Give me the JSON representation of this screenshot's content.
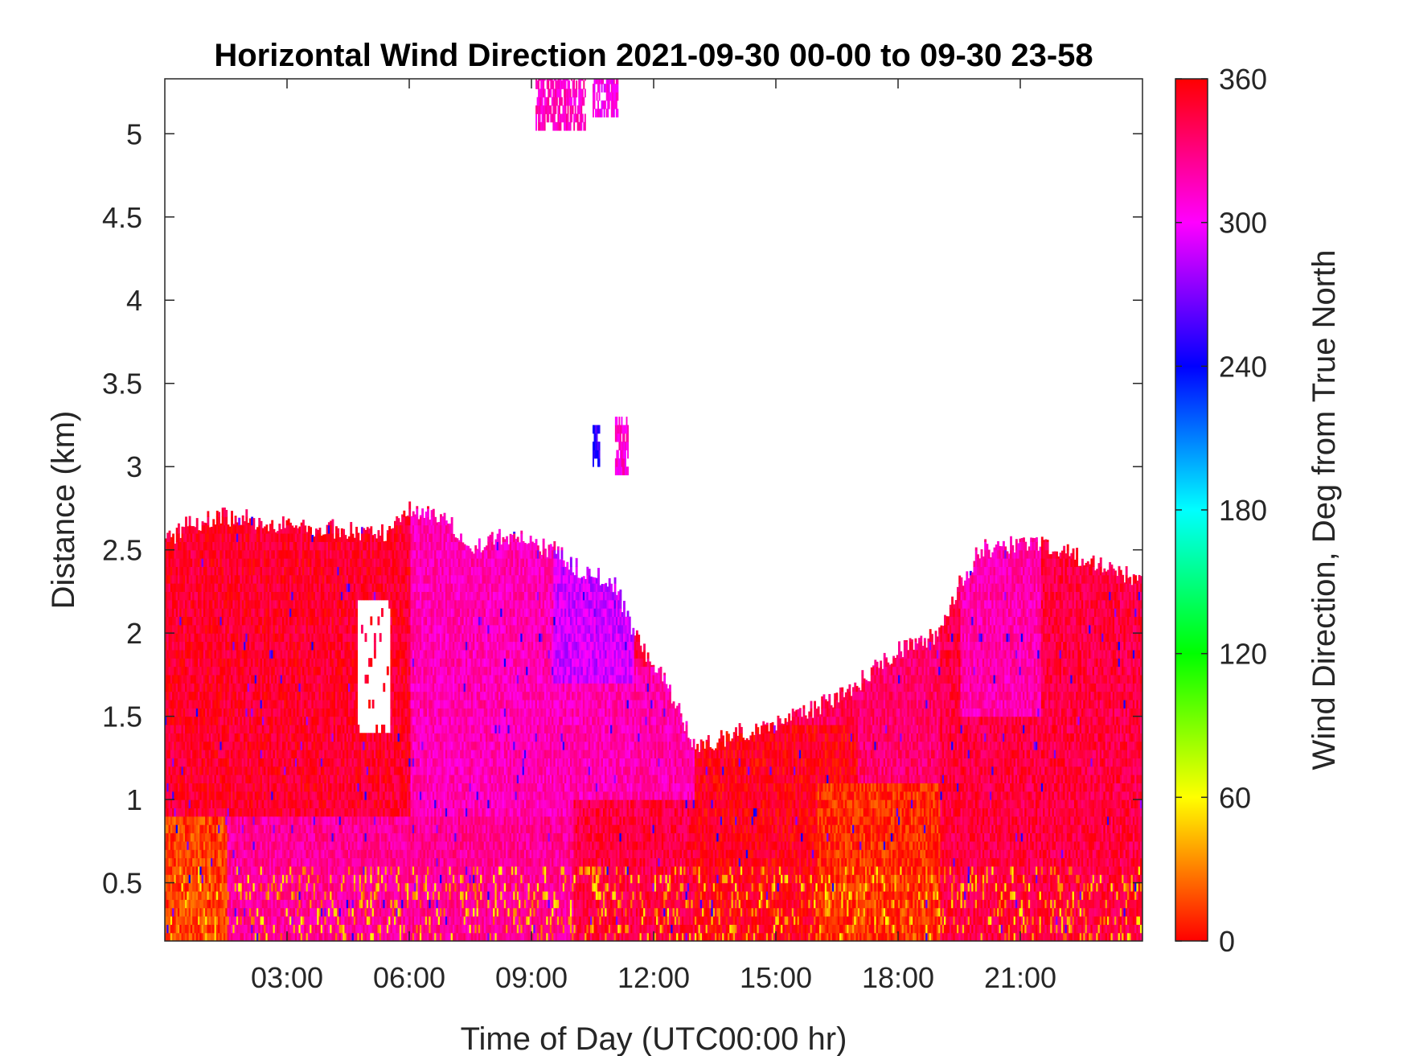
{
  "chart_data": {
    "type": "heatmap",
    "title": "Horizontal Wind Direction 2021-09-30 00-00 to 09-30 23-58",
    "xlabel": "Time of Day (UTC00:00 hr)",
    "ylabel": "Distance (km)",
    "colorbar_label": "Wind Direction, Deg from True North",
    "x_range_hours": [
      0,
      24
    ],
    "y_range_km": [
      0.15,
      5.33
    ],
    "color_range_deg": [
      0,
      360
    ],
    "x_ticks": [
      {
        "value": 3,
        "label": "03:00"
      },
      {
        "value": 6,
        "label": "06:00"
      },
      {
        "value": 9,
        "label": "09:00"
      },
      {
        "value": 12,
        "label": "12:00"
      },
      {
        "value": 15,
        "label": "15:00"
      },
      {
        "value": 18,
        "label": "18:00"
      },
      {
        "value": 21,
        "label": "21:00"
      }
    ],
    "y_ticks": [
      {
        "value": 0.5,
        "label": "0.5"
      },
      {
        "value": 1,
        "label": "1"
      },
      {
        "value": 1.5,
        "label": "1.5"
      },
      {
        "value": 2,
        "label": "2"
      },
      {
        "value": 2.5,
        "label": "2.5"
      },
      {
        "value": 3,
        "label": "3"
      },
      {
        "value": 3.5,
        "label": "3.5"
      },
      {
        "value": 4,
        "label": "4"
      },
      {
        "value": 4.5,
        "label": "4.5"
      },
      {
        "value": 5,
        "label": "5"
      }
    ],
    "colorbar_ticks": [
      {
        "value": 0,
        "label": "0"
      },
      {
        "value": 60,
        "label": "60"
      },
      {
        "value": 120,
        "label": "120"
      },
      {
        "value": 180,
        "label": "180"
      },
      {
        "value": 240,
        "label": "240"
      },
      {
        "value": 300,
        "label": "300"
      },
      {
        "value": 360,
        "label": "360"
      }
    ],
    "colormap": [
      "#ff0000",
      "#ffff00",
      "#00ff00",
      "#00ffff",
      "#0000ff",
      "#ff00ff",
      "#ff0000"
    ],
    "data_top_height_km": [
      {
        "hour": 0,
        "km": 2.55
      },
      {
        "hour": 0.5,
        "km": 2.65
      },
      {
        "hour": 1.5,
        "km": 2.7
      },
      {
        "hour": 3,
        "km": 2.65
      },
      {
        "hour": 5.5,
        "km": 2.6
      },
      {
        "hour": 6,
        "km": 2.75
      },
      {
        "hour": 7,
        "km": 2.65
      },
      {
        "hour": 7.5,
        "km": 2.5
      },
      {
        "hour": 8.5,
        "km": 2.6
      },
      {
        "hour": 9.5,
        "km": 2.5
      },
      {
        "hour": 10,
        "km": 2.4
      },
      {
        "hour": 11,
        "km": 2.3
      },
      {
        "hour": 11.5,
        "km": 2.0
      },
      {
        "hour": 12,
        "km": 1.8
      },
      {
        "hour": 12.5,
        "km": 1.6
      },
      {
        "hour": 13,
        "km": 1.3
      },
      {
        "hour": 14,
        "km": 1.4
      },
      {
        "hour": 15,
        "km": 1.45
      },
      {
        "hour": 16,
        "km": 1.55
      },
      {
        "hour": 17,
        "km": 1.7
      },
      {
        "hour": 18,
        "km": 1.9
      },
      {
        "hour": 19,
        "km": 2.0
      },
      {
        "hour": 19.5,
        "km": 2.3
      },
      {
        "hour": 20,
        "km": 2.5
      },
      {
        "hour": 21,
        "km": 2.55
      },
      {
        "hour": 22,
        "km": 2.5
      },
      {
        "hour": 23,
        "km": 2.4
      },
      {
        "hour": 24,
        "km": 2.3
      }
    ],
    "regions": [
      {
        "h0": 0,
        "h1": 1.5,
        "k0": 0.15,
        "k1": 0.9,
        "deg": 15
      },
      {
        "h0": 0,
        "h1": 6.0,
        "k0": 0.9,
        "k1": 2.7,
        "deg": 350
      },
      {
        "h0": 1.5,
        "h1": 10,
        "k0": 0.15,
        "k1": 0.9,
        "deg": 325
      },
      {
        "h0": 6,
        "h1": 11.5,
        "k0": 0.9,
        "k1": 2.7,
        "deg": 318
      },
      {
        "h0": 9.5,
        "h1": 11.5,
        "k0": 1.7,
        "k1": 2.45,
        "deg": 290
      },
      {
        "h0": 10,
        "h1": 13.5,
        "k0": 0.15,
        "k1": 1.0,
        "deg": 345
      },
      {
        "h0": 11.5,
        "h1": 13,
        "k0": 1.0,
        "k1": 1.8,
        "deg": 320
      },
      {
        "h0": 13,
        "h1": 17,
        "k0": 0.15,
        "k1": 1.45,
        "deg": 355
      },
      {
        "h0": 16,
        "h1": 19,
        "k0": 0.15,
        "k1": 1.1,
        "deg": 10
      },
      {
        "h0": 17,
        "h1": 20,
        "k0": 1.1,
        "k1": 2.0,
        "deg": 335
      },
      {
        "h0": 19,
        "h1": 24,
        "k0": 0.15,
        "k1": 2.6,
        "deg": 345
      },
      {
        "h0": 19.5,
        "h1": 21.5,
        "k0": 1.5,
        "k1": 2.6,
        "deg": 320
      }
    ],
    "gaps": [
      {
        "h0": 4.7,
        "h1": 5.5,
        "k0": 1.4,
        "k1": 2.2
      }
    ],
    "isolated_patches": [
      {
        "h0": 9.1,
        "h1": 10.3,
        "k0": 5.02,
        "k1": 5.33,
        "deg": 315
      },
      {
        "h0": 10.5,
        "h1": 11.1,
        "k0": 5.1,
        "k1": 5.33,
        "deg": 305
      },
      {
        "h0": 11.05,
        "h1": 11.35,
        "k0": 2.95,
        "k1": 3.25,
        "deg": 310
      },
      {
        "h0": 10.5,
        "h1": 10.65,
        "k0": 3.0,
        "k1": 3.2,
        "deg": 250
      }
    ]
  }
}
